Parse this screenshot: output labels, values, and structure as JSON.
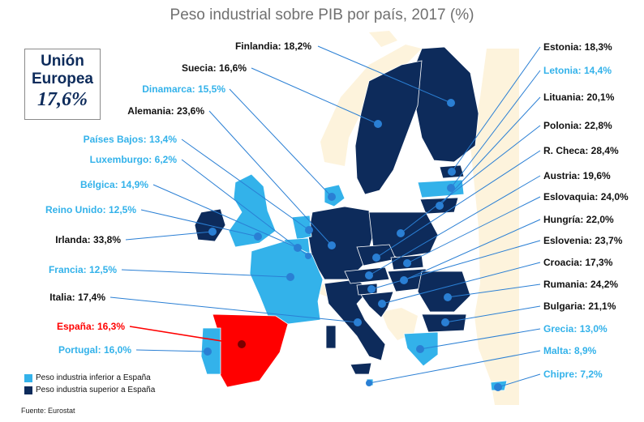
{
  "title": "Peso industrial sobre PIB por país, 2017 (%)",
  "eu_box": {
    "line1": "Unión",
    "line2": "Europea",
    "value": "17,6%"
  },
  "colors": {
    "above": "#0d2b5b",
    "below": "#33b2ea",
    "spain": "#ff0000",
    "non_eu": "#fdf3dc",
    "sea": "#ffffff",
    "leader": "#2a7fd4"
  },
  "legend": {
    "below_label": "Peso industria inferior a España",
    "above_label": "Peso industria superior a España"
  },
  "source": "Fuente: Eurostat",
  "countries": [
    {
      "id": "finlandia",
      "label": "Finlandia: 18,2%",
      "category": "above"
    },
    {
      "id": "suecia",
      "label": "Suecia: 16,6%",
      "category": "above"
    },
    {
      "id": "dinamarca",
      "label": "Dinamarca: 15,5%",
      "category": "below"
    },
    {
      "id": "alemania",
      "label": "Alemania: 23,6%",
      "category": "above"
    },
    {
      "id": "paises-bajos",
      "label": "Países Bajos: 13,4%",
      "category": "below"
    },
    {
      "id": "luxemburgo",
      "label": "Luxemburgo: 6,2%",
      "category": "below"
    },
    {
      "id": "belgica",
      "label": "Bélgica: 14,9%",
      "category": "below"
    },
    {
      "id": "reino-unido",
      "label": "Reino Unido: 12,5%",
      "category": "below"
    },
    {
      "id": "irlanda",
      "label": "Irlanda: 33,8%",
      "category": "above"
    },
    {
      "id": "francia",
      "label": "Francia: 12,5%",
      "category": "below"
    },
    {
      "id": "italia",
      "label": "Italia: 17,4%",
      "category": "above"
    },
    {
      "id": "espana",
      "label": "España: 16,3%",
      "category": "spain"
    },
    {
      "id": "portugal",
      "label": "Portugal: 16,0%",
      "category": "below"
    },
    {
      "id": "estonia",
      "label": "Estonia: 18,3%",
      "category": "above"
    },
    {
      "id": "letonia",
      "label": "Letonia: 14,4%",
      "category": "below"
    },
    {
      "id": "lituania",
      "label": "Lituania: 20,1%",
      "category": "above"
    },
    {
      "id": "polonia",
      "label": "Polonia: 22,8%",
      "category": "above"
    },
    {
      "id": "r-checa",
      "label": "R. Checa: 28,4%",
      "category": "above"
    },
    {
      "id": "austria",
      "label": "Austria: 19,6%",
      "category": "above"
    },
    {
      "id": "eslovaquia",
      "label": "Eslovaquia: 24,0%",
      "category": "above"
    },
    {
      "id": "hungria",
      "label": "Hungría: 22,0%",
      "category": "above"
    },
    {
      "id": "eslovenia",
      "label": "Eslovenia: 23,7%",
      "category": "above"
    },
    {
      "id": "croacia",
      "label": "Croacia: 17,3%",
      "category": "above"
    },
    {
      "id": "rumania",
      "label": "Rumania: 24,2%",
      "category": "above"
    },
    {
      "id": "bulgaria",
      "label": "Bulgaria: 21,1%",
      "category": "above"
    },
    {
      "id": "grecia",
      "label": "Grecia: 13,0%",
      "category": "below"
    },
    {
      "id": "malta",
      "label": "Malta: 8,9%",
      "category": "below"
    },
    {
      "id": "chipre",
      "label": "Chipre: 7,2%",
      "category": "below"
    }
  ]
}
